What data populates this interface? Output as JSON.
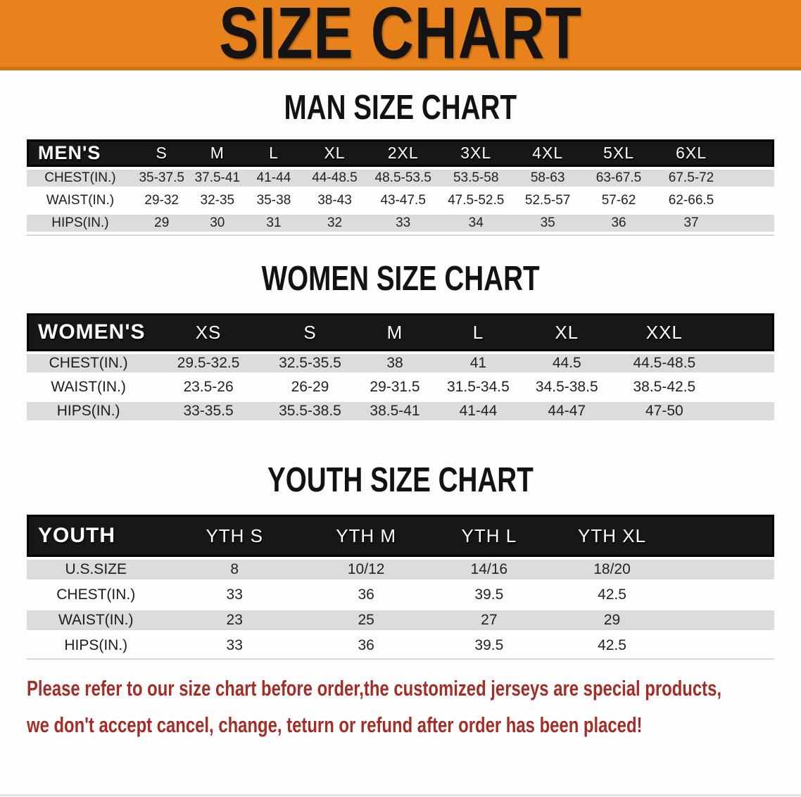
{
  "banner": {
    "title": "SIZE CHART"
  },
  "colors": {
    "banner_bg": "#E8821C",
    "banner_shadow": "#CE7110",
    "header_bg": "#171717",
    "stripe": "#DCDCDC",
    "disclaimer": "#A32E28"
  },
  "sections": {
    "men": {
      "heading": "MAN SIZE CHART",
      "table": {
        "label": "MEN'S",
        "columns": [
          "S",
          "M",
          "L",
          "XL",
          "2XL",
          "3XL",
          "4XL",
          "5XL",
          "6XL"
        ],
        "rows": [
          {
            "label": "CHEST(IN.)",
            "values": [
              "35-37.5",
              "37.5-41",
              "41-44",
              "44-48.5",
              "48.5-53.5",
              "53.5-58",
              "58-63",
              "63-67.5",
              "67.5-72"
            ]
          },
          {
            "label": "WAIST(IN.)",
            "values": [
              "29-32",
              "32-35",
              "35-38",
              "38-43",
              "43-47.5",
              "47.5-52.5",
              "52.5-57",
              "57-62",
              "62-66.5"
            ]
          },
          {
            "label": "HIPS(IN.)",
            "values": [
              "29",
              "30",
              "31",
              "32",
              "33",
              "34",
              "35",
              "36",
              "37"
            ]
          }
        ]
      }
    },
    "women": {
      "heading": "WOMEN SIZE CHART",
      "table": {
        "label": "WOMEN'S",
        "columns": [
          "XS",
          "S",
          "M",
          "L",
          "XL",
          "XXL"
        ],
        "rows": [
          {
            "label": "CHEST(IN.)",
            "values": [
              "29.5-32.5",
              "32.5-35.5",
              "38",
              "41",
              "44.5",
              "44.5-48.5"
            ]
          },
          {
            "label": "WAIST(IN.)",
            "values": [
              "23.5-26",
              "26-29",
              "29-31.5",
              "31.5-34.5",
              "34.5-38.5",
              "38.5-42.5"
            ]
          },
          {
            "label": "HIPS(IN.)",
            "values": [
              "33-35.5",
              "35.5-38.5",
              "38.5-41",
              "41-44",
              "44-47",
              "47-50"
            ]
          }
        ]
      }
    },
    "youth": {
      "heading": "YOUTH SIZE CHART",
      "table": {
        "label": "YOUTH",
        "columns": [
          "YTH S",
          "YTH M",
          "YTH L",
          "YTH XL"
        ],
        "rows": [
          {
            "label": "U.S.SIZE",
            "values": [
              "8",
              "10/12",
              "14/16",
              "18/20"
            ]
          },
          {
            "label": "CHEST(IN.)",
            "values": [
              "33",
              "36",
              "39.5",
              "42.5"
            ]
          },
          {
            "label": "WAIST(IN.)",
            "values": [
              "23",
              "25",
              "27",
              "29"
            ]
          },
          {
            "label": "HIPS(IN.)",
            "values": [
              "33",
              "36",
              "39.5",
              "42.5"
            ]
          }
        ]
      }
    }
  },
  "disclaimer": {
    "lines": [
      "Please refer to our size chart before order,the customized jerseys are special products,",
      "we don't accept cancel, change, teturn or refund after order has been placed!"
    ]
  }
}
